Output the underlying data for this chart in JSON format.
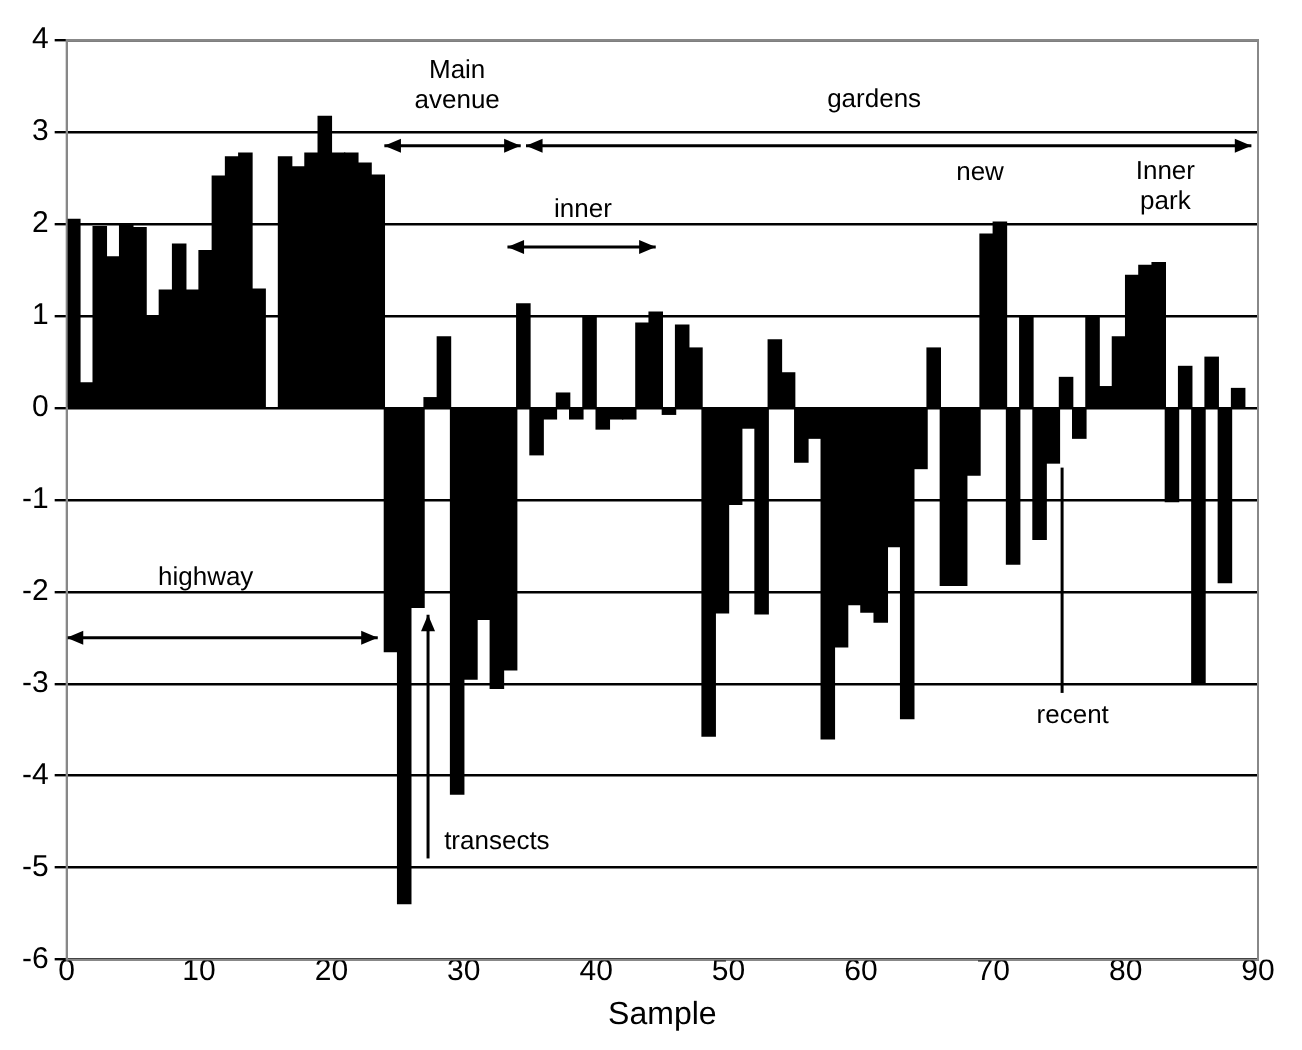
{
  "chart_data": {
    "type": "bar",
    "xlabel": "Sample",
    "x": [
      0.5,
      1.5,
      2.5,
      3.5,
      4.5,
      5.5,
      6.5,
      7.5,
      8.5,
      9.5,
      10.5,
      11.5,
      12.5,
      13.5,
      14.5,
      15.5,
      16.5,
      17.5,
      18.5,
      19.5,
      20.5,
      21.5,
      22.5,
      23.5,
      24.5,
      25.5,
      26.5,
      27.5,
      28.5,
      29.5,
      30.5,
      31.5,
      32.5,
      33.5,
      34.5,
      35.5,
      36.5,
      37.5,
      38.5,
      39.5,
      40.5,
      41.5,
      42.5,
      43.5,
      44.5,
      45.5,
      46.5,
      47.5,
      48.5,
      49.5,
      50.5,
      51.5,
      52.5,
      53.5,
      54.5,
      55.5,
      56.5,
      57.5,
      58.5,
      59.5,
      60.5,
      61.5,
      62.5,
      63.5,
      64.5,
      65.5,
      66.5,
      67.5,
      68.5,
      69.5,
      70.5,
      71.5,
      72.5,
      73.5,
      74.5,
      75.5,
      76.5,
      77.5,
      78.5,
      79.5,
      80.5,
      81.5,
      82.5,
      83.5,
      84.5,
      85.5,
      86.5,
      87.5,
      88.5
    ],
    "values": [
      2.05,
      0.27,
      1.97,
      1.64,
      2.0,
      1.96,
      0.98,
      1.28,
      1.78,
      1.28,
      1.71,
      2.52,
      2.73,
      2.77,
      1.29,
      null,
      2.73,
      2.62,
      2.77,
      3.17,
      2.77,
      2.77,
      2.66,
      2.53,
      -2.65,
      -5.39,
      -2.17,
      0.11,
      0.77,
      -4.2,
      -2.95,
      -2.3,
      -3.05,
      -2.85,
      1.13,
      -0.51,
      -0.12,
      0.16,
      -0.12,
      1.0,
      -0.23,
      -0.12,
      -0.12,
      0.92,
      1.04,
      -0.07,
      0.9,
      0.65,
      -3.57,
      -2.23,
      -1.05,
      -0.22,
      -2.24,
      0.74,
      0.38,
      -0.59,
      -0.33,
      -3.6,
      -2.6,
      -2.14,
      -2.22,
      -2.33,
      -1.51,
      -3.38,
      -0.66,
      0.65,
      -1.93,
      -1.93,
      -0.73,
      1.89,
      2.02,
      -1.7,
      0.99,
      -1.43,
      -0.6,
      0.33,
      -0.33,
      0.99,
      0.23,
      0.77,
      1.44,
      1.55,
      1.58,
      -1.02,
      0.45,
      -3.0,
      0.55,
      -1.9,
      0.21
    ],
    "color": "#000000",
    "xlim": [
      0,
      90
    ],
    "xticks": [
      0,
      10,
      20,
      30,
      40,
      50,
      60,
      70,
      80,
      90
    ],
    "ylim": [
      -6,
      4
    ],
    "yticks": [
      -6,
      -5,
      -4,
      -3,
      -2,
      -1,
      0,
      1,
      2,
      3,
      4
    ],
    "grid": "y",
    "legend": false,
    "annotations": [
      "highway",
      "Main\navenue",
      "gardens",
      "inner",
      "new",
      "Inner\npark",
      {
        "text": "transects",
        "x": 27.3,
        "y": -2.25
      },
      {
        "text": "recent",
        "x": 75.2,
        "y": -0.65
      }
    ]
  }
}
